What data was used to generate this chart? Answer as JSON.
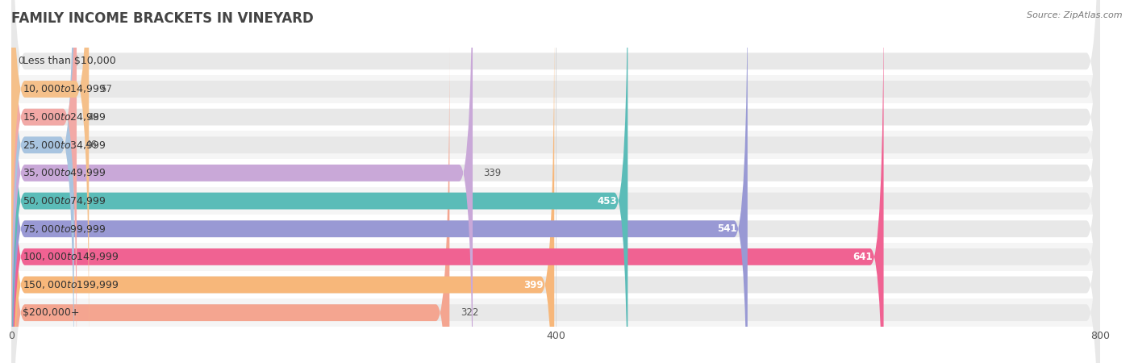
{
  "title": "FAMILY INCOME BRACKETS IN VINEYARD",
  "source": "Source: ZipAtlas.com",
  "categories": [
    "Less than $10,000",
    "$10,000 to $14,999",
    "$15,000 to $24,999",
    "$25,000 to $34,999",
    "$35,000 to $49,999",
    "$50,000 to $74,999",
    "$75,000 to $99,999",
    "$100,000 to $149,999",
    "$150,000 to $199,999",
    "$200,000+"
  ],
  "values": [
    0,
    57,
    48,
    46,
    339,
    453,
    541,
    641,
    399,
    322
  ],
  "bar_colors": [
    "#f78fa7",
    "#f5c08a",
    "#f2a9a6",
    "#a8c4e0",
    "#c9a8d8",
    "#5bbcb8",
    "#9999d4",
    "#f06292",
    "#f7b77a",
    "#f4a590"
  ],
  "xlim": [
    0,
    800
  ],
  "xticks": [
    0,
    400,
    800
  ],
  "background_color": "#ffffff",
  "bar_bg_color": "#e8e8e8",
  "row_bg_odd": "#f5f5f5",
  "row_bg_even": "#ffffff",
  "title_fontsize": 12,
  "label_fontsize": 9,
  "value_fontsize": 8.5,
  "bar_height": 0.6,
  "rounding_size": 10
}
